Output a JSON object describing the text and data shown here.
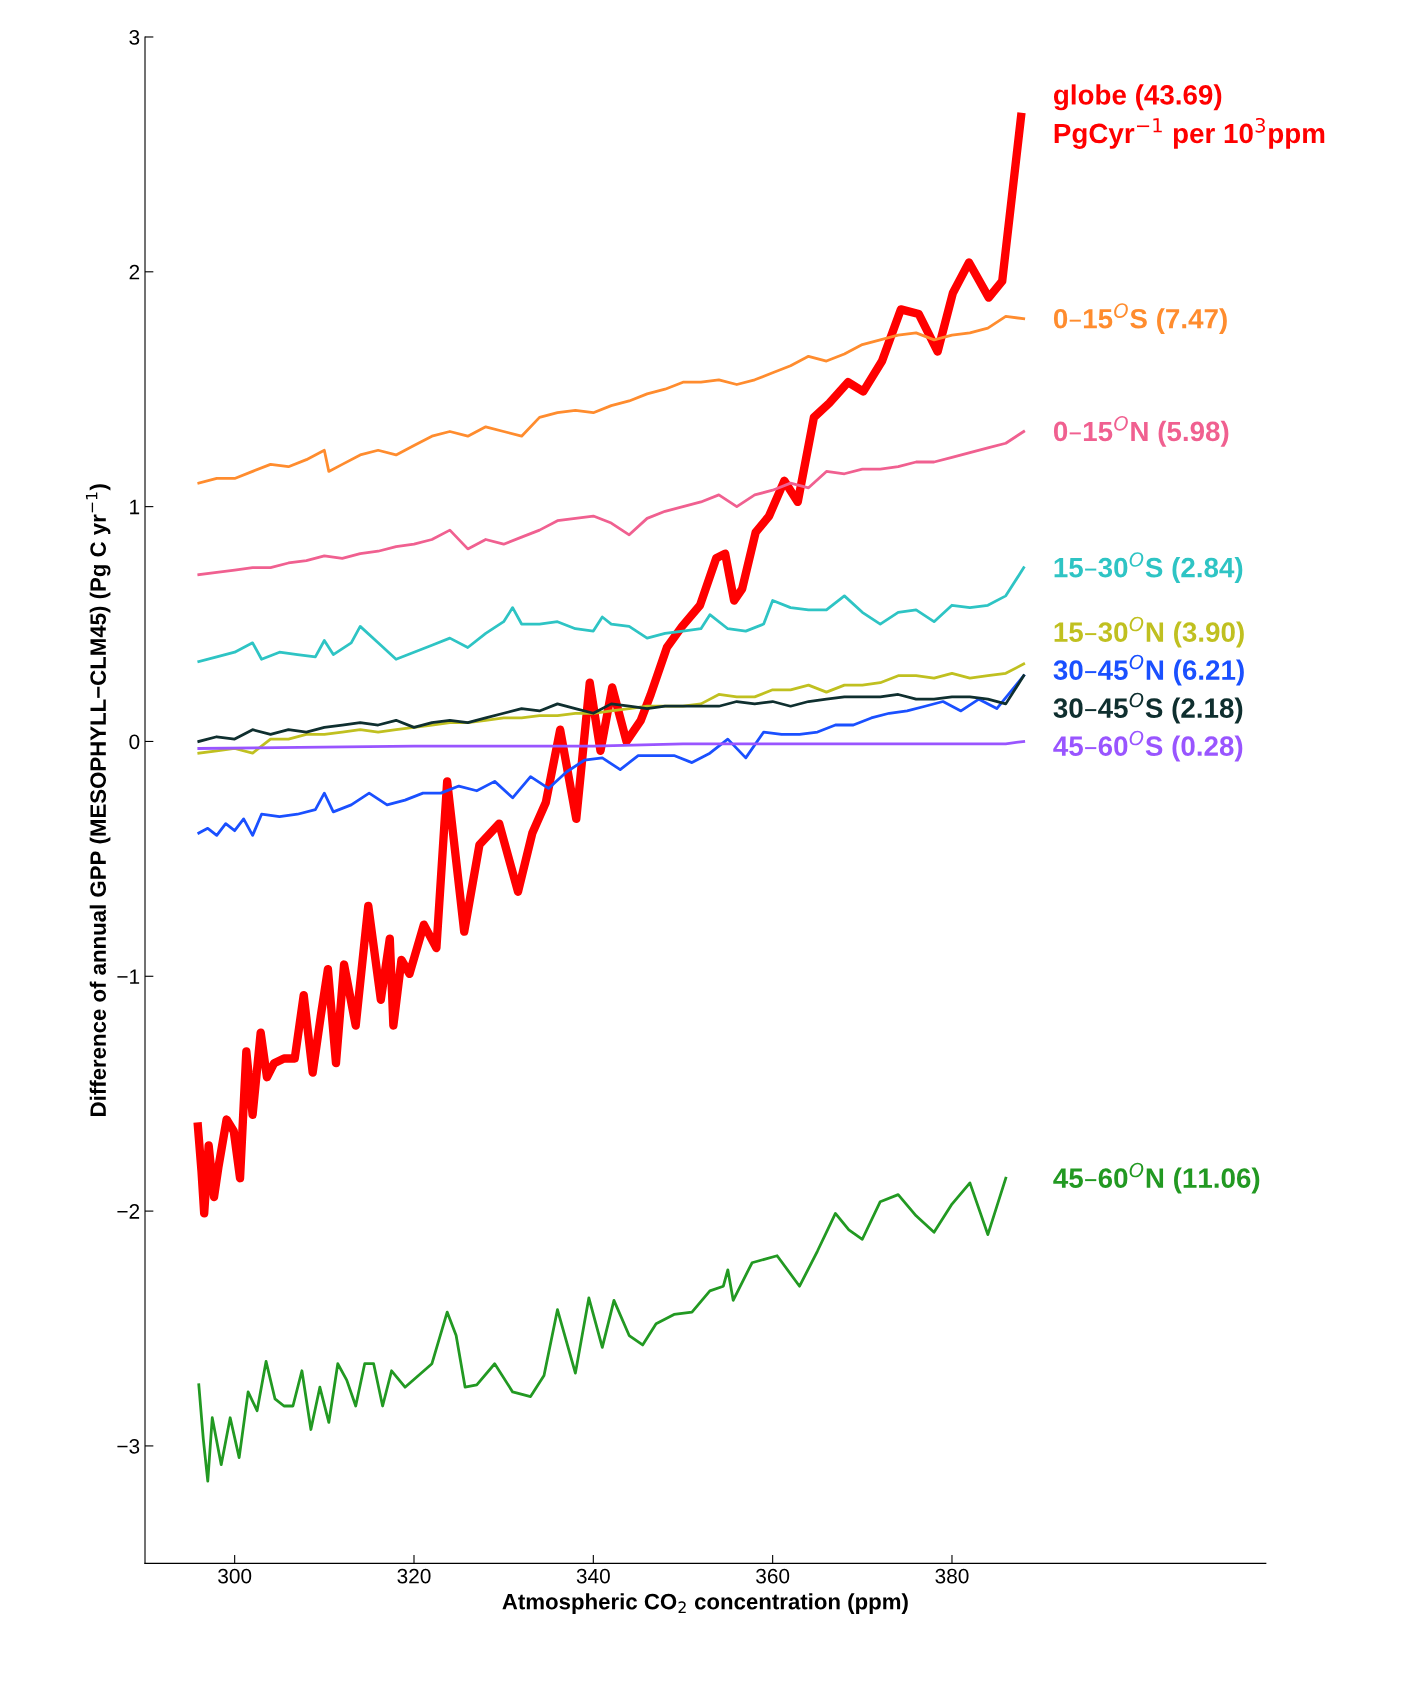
{
  "chart_data": {
    "type": "line",
    "xlabel": "Atmospheric CO$_{2}$ concentration (ppm)",
    "ylabel": "Difference of annual GPP (MESOPHYLL−CLM45) (Pg C yr$^{−1}$)",
    "xlim": [
      290,
      415
    ],
    "ylim": [
      -3.5,
      3
    ],
    "xticks": [
      300,
      320,
      340,
      360,
      380
    ],
    "yticks": [
      {
        "value": -3,
        "label": "−3"
      },
      {
        "value": -2,
        "label": "−2"
      },
      {
        "value": -1,
        "label": "−1"
      },
      0,
      1,
      2,
      3
    ],
    "grid": false,
    "legend": false,
    "series": [
      {
        "name": "globe (43.69)\nPgCyr$^{−1}$ per 10$^{3}$ppm",
        "color": "#ff0000",
        "x": [
          295.9,
          296.3,
          296.6,
          297.1,
          297.7,
          298.2,
          299.1,
          299.9,
          300.6,
          301.3,
          302.0,
          302.9,
          303.6,
          304.4,
          305.5,
          306.7,
          307.7,
          308.7,
          309.6,
          310.4,
          311.3,
          312.2,
          313.5,
          314.9,
          316.3,
          317.3,
          317.7,
          318.6,
          319.5,
          321.1,
          322.5,
          323.7,
          325.6,
          327.3,
          329.5,
          331.6,
          333.2,
          334.7,
          336.3,
          338.1,
          339.6,
          340.8,
          342.1,
          343.7,
          345.3,
          346.4,
          348.2,
          349.9,
          351.9,
          353.7,
          354.7,
          355.7,
          356.6,
          358.1,
          359.6,
          361.3,
          362.8,
          364.6,
          366.3,
          368.4,
          370.1,
          372.2,
          374.3,
          376.3,
          378.4,
          380.1,
          381.9,
          384.1,
          385.6,
          387.7
        ],
        "values": [
          -1.64,
          -1.83,
          -2.01,
          -1.72,
          -1.94,
          -1.81,
          -1.61,
          -1.66,
          -1.86,
          -1.32,
          -1.59,
          -1.24,
          -1.43,
          -1.37,
          -1.35,
          -1.35,
          -1.08,
          -1.41,
          -1.17,
          -0.97,
          -1.37,
          -0.95,
          -1.21,
          -0.7,
          -1.1,
          -0.84,
          -1.21,
          -0.93,
          -0.99,
          -0.78,
          -0.88,
          -0.17,
          -0.81,
          -0.44,
          -0.35,
          -0.64,
          -0.39,
          -0.26,
          0.05,
          -0.33,
          0.25,
          -0.04,
          0.23,
          0.0,
          0.09,
          0.2,
          0.4,
          0.49,
          0.58,
          0.78,
          0.8,
          0.6,
          0.65,
          0.89,
          0.96,
          1.11,
          1.02,
          1.38,
          1.44,
          1.53,
          1.49,
          1.62,
          1.84,
          1.82,
          1.66,
          1.91,
          2.04,
          1.89,
          1.96,
          2.66
        ]
      },
      {
        "name": "0–15$^{O}$S (7.47)",
        "color": "#ff8c2e",
        "x": [
          296,
          298,
          300,
          302,
          304,
          306,
          308,
          310,
          310.5,
          312,
          314,
          316,
          318,
          320,
          322,
          324,
          326,
          328,
          330,
          332,
          334,
          336,
          338,
          340,
          342,
          344,
          346,
          348,
          350,
          352,
          354,
          356,
          358,
          360,
          362,
          364,
          366,
          368,
          370,
          372,
          374,
          376,
          378,
          380,
          382,
          384,
          386,
          388
        ],
        "values": [
          1.1,
          1.12,
          1.12,
          1.15,
          1.18,
          1.17,
          1.2,
          1.24,
          1.15,
          1.18,
          1.22,
          1.24,
          1.22,
          1.26,
          1.3,
          1.32,
          1.3,
          1.34,
          1.32,
          1.3,
          1.38,
          1.4,
          1.41,
          1.4,
          1.43,
          1.45,
          1.48,
          1.5,
          1.53,
          1.53,
          1.54,
          1.52,
          1.54,
          1.57,
          1.6,
          1.64,
          1.62,
          1.65,
          1.69,
          1.71,
          1.73,
          1.74,
          1.71,
          1.73,
          1.74,
          1.76,
          1.81,
          1.8
        ]
      },
      {
        "name": "0–15$^{O}$N (5.98)",
        "color": "#f06090",
        "x": [
          296,
          298,
          300,
          302,
          304,
          306,
          308,
          310,
          312,
          314,
          316,
          318,
          320,
          322,
          324,
          326,
          328,
          330,
          332,
          334,
          336,
          338,
          340,
          342,
          344,
          346,
          348,
          350,
          352,
          354,
          356,
          358,
          360,
          362,
          364,
          366,
          368,
          370,
          372,
          374,
          376,
          378,
          380,
          382,
          384,
          386,
          388
        ],
        "values": [
          0.71,
          0.72,
          0.73,
          0.74,
          0.74,
          0.76,
          0.77,
          0.79,
          0.78,
          0.8,
          0.81,
          0.83,
          0.84,
          0.86,
          0.9,
          0.82,
          0.86,
          0.84,
          0.87,
          0.9,
          0.94,
          0.95,
          0.96,
          0.93,
          0.88,
          0.95,
          0.98,
          1.0,
          1.02,
          1.05,
          1.0,
          1.05,
          1.07,
          1.1,
          1.08,
          1.15,
          1.14,
          1.16,
          1.16,
          1.17,
          1.19,
          1.19,
          1.21,
          1.23,
          1.25,
          1.27,
          1.32
        ]
      },
      {
        "name": "15–30$^{O}$S (2.84)",
        "color": "#2ec4c4",
        "x": [
          296,
          298,
          300,
          302,
          303,
          305,
          307,
          309,
          310,
          311,
          313,
          314,
          316,
          318,
          320,
          322,
          324,
          326,
          328,
          330,
          331,
          332,
          334,
          336,
          338,
          340,
          341,
          342,
          344,
          346,
          348,
          350,
          352,
          353,
          355,
          357,
          359,
          360,
          362,
          364,
          366,
          368,
          370,
          372,
          374,
          376,
          378,
          380,
          382,
          384,
          386,
          388
        ],
        "values": [
          0.34,
          0.36,
          0.38,
          0.42,
          0.35,
          0.38,
          0.37,
          0.36,
          0.43,
          0.37,
          0.42,
          0.49,
          0.42,
          0.35,
          0.38,
          0.41,
          0.44,
          0.4,
          0.46,
          0.51,
          0.57,
          0.5,
          0.5,
          0.51,
          0.48,
          0.47,
          0.53,
          0.5,
          0.49,
          0.44,
          0.46,
          0.47,
          0.48,
          0.54,
          0.48,
          0.47,
          0.5,
          0.6,
          0.57,
          0.56,
          0.56,
          0.62,
          0.55,
          0.5,
          0.55,
          0.56,
          0.51,
          0.58,
          0.57,
          0.58,
          0.62,
          0.74
        ]
      },
      {
        "name": "15–30$^{O}$N (3.90)",
        "color": "#c0c020",
        "x": [
          296,
          298,
          300,
          302,
          304,
          306,
          308,
          310,
          312,
          314,
          316,
          318,
          320,
          322,
          324,
          326,
          328,
          330,
          332,
          334,
          336,
          338,
          340,
          342,
          344,
          346,
          348,
          350,
          352,
          354,
          356,
          358,
          360,
          362,
          364,
          366,
          368,
          370,
          372,
          374,
          376,
          378,
          380,
          382,
          384,
          386,
          388
        ],
        "values": [
          -0.05,
          -0.04,
          -0.03,
          -0.05,
          0.01,
          0.01,
          0.03,
          0.03,
          0.04,
          0.05,
          0.04,
          0.05,
          0.06,
          0.07,
          0.08,
          0.08,
          0.09,
          0.1,
          0.1,
          0.11,
          0.11,
          0.12,
          0.12,
          0.13,
          0.14,
          0.15,
          0.15,
          0.15,
          0.16,
          0.2,
          0.19,
          0.19,
          0.22,
          0.22,
          0.24,
          0.21,
          0.24,
          0.24,
          0.25,
          0.28,
          0.28,
          0.27,
          0.29,
          0.27,
          0.28,
          0.29,
          0.33
        ]
      },
      {
        "name": "30–45$^{O}$N (6.21)",
        "color": "#1a50ff",
        "x": [
          296,
          297,
          298,
          299,
          300,
          301,
          302,
          303,
          305,
          307,
          309,
          310,
          311,
          313,
          315,
          317,
          319,
          321,
          323,
          325,
          327,
          329,
          331,
          333,
          335,
          337,
          339,
          341,
          343,
          345,
          347,
          349,
          351,
          353,
          355,
          357,
          359,
          361,
          363,
          365,
          367,
          369,
          371,
          373,
          375,
          377,
          379,
          381,
          383,
          385,
          388
        ],
        "values": [
          -0.39,
          -0.37,
          -0.4,
          -0.35,
          -0.38,
          -0.33,
          -0.4,
          -0.31,
          -0.32,
          -0.31,
          -0.29,
          -0.22,
          -0.3,
          -0.27,
          -0.22,
          -0.27,
          -0.25,
          -0.22,
          -0.22,
          -0.19,
          -0.21,
          -0.17,
          -0.24,
          -0.15,
          -0.2,
          -0.13,
          -0.08,
          -0.07,
          -0.12,
          -0.06,
          -0.06,
          -0.06,
          -0.09,
          -0.05,
          0.01,
          -0.07,
          0.04,
          0.03,
          0.03,
          0.04,
          0.07,
          0.07,
          0.1,
          0.12,
          0.13,
          0.15,
          0.17,
          0.13,
          0.18,
          0.14,
          0.28
        ]
      },
      {
        "name": "30–45$^{O}$S (2.18)",
        "color": "#0f2f2f",
        "x": [
          296,
          298,
          300,
          302,
          304,
          306,
          308,
          310,
          312,
          314,
          316,
          318,
          320,
          322,
          324,
          326,
          328,
          330,
          332,
          334,
          336,
          338,
          340,
          342,
          344,
          346,
          348,
          350,
          352,
          354,
          356,
          358,
          360,
          362,
          364,
          366,
          368,
          370,
          372,
          374,
          376,
          378,
          380,
          382,
          384,
          386,
          388
        ],
        "values": [
          0.0,
          0.02,
          0.01,
          0.05,
          0.03,
          0.05,
          0.04,
          0.06,
          0.07,
          0.08,
          0.07,
          0.09,
          0.06,
          0.08,
          0.09,
          0.08,
          0.1,
          0.12,
          0.14,
          0.13,
          0.16,
          0.14,
          0.12,
          0.16,
          0.15,
          0.14,
          0.15,
          0.15,
          0.15,
          0.15,
          0.17,
          0.16,
          0.17,
          0.15,
          0.17,
          0.18,
          0.19,
          0.19,
          0.19,
          0.2,
          0.18,
          0.18,
          0.19,
          0.19,
          0.18,
          0.16,
          0.28
        ]
      },
      {
        "name": "45–60$^{O}$S (0.28)",
        "color": "#9955ff",
        "x": [
          296,
          320,
          340,
          350,
          370,
          386,
          388
        ],
        "values": [
          -0.03,
          -0.02,
          -0.02,
          -0.01,
          -0.01,
          -0.01,
          0.0
        ]
      },
      {
        "name": "45–60$^{O}$N (11.06)",
        "color": "#229922",
        "x": [
          296,
          296.5,
          297,
          297.5,
          298.5,
          299.5,
          300.5,
          301.5,
          302.5,
          303.5,
          304.5,
          305.5,
          306.5,
          307.5,
          308.5,
          309.5,
          310.5,
          311.5,
          312.5,
          313.5,
          314.5,
          315.5,
          316.5,
          317.5,
          319,
          320.5,
          322,
          323.7,
          324.7,
          325.7,
          327,
          329,
          331,
          333,
          334.5,
          336,
          338,
          339.5,
          341,
          342.3,
          344,
          345.5,
          347,
          349,
          351,
          353,
          354.5,
          355,
          355.6,
          357.7,
          360.5,
          363,
          365,
          367,
          368.5,
          370,
          372,
          374,
          376,
          378,
          380,
          382,
          384,
          386
        ],
        "values": [
          -2.74,
          -2.97,
          -3.15,
          -2.88,
          -3.08,
          -2.88,
          -3.05,
          -2.77,
          -2.85,
          -2.64,
          -2.8,
          -2.83,
          -2.83,
          -2.68,
          -2.93,
          -2.75,
          -2.9,
          -2.65,
          -2.72,
          -2.83,
          -2.65,
          -2.65,
          -2.83,
          -2.68,
          -2.75,
          -2.7,
          -2.65,
          -2.43,
          -2.53,
          -2.75,
          -2.74,
          -2.65,
          -2.77,
          -2.79,
          -2.7,
          -2.42,
          -2.69,
          -2.37,
          -2.58,
          -2.38,
          -2.53,
          -2.57,
          -2.48,
          -2.44,
          -2.43,
          -2.34,
          -2.32,
          -2.25,
          -2.38,
          -2.22,
          -2.19,
          -2.32,
          -2.17,
          -2.01,
          -2.08,
          -2.12,
          -1.96,
          -1.93,
          -2.02,
          -2.09,
          -1.97,
          -1.88,
          -2.1,
          -1.86
        ]
      }
    ]
  }
}
